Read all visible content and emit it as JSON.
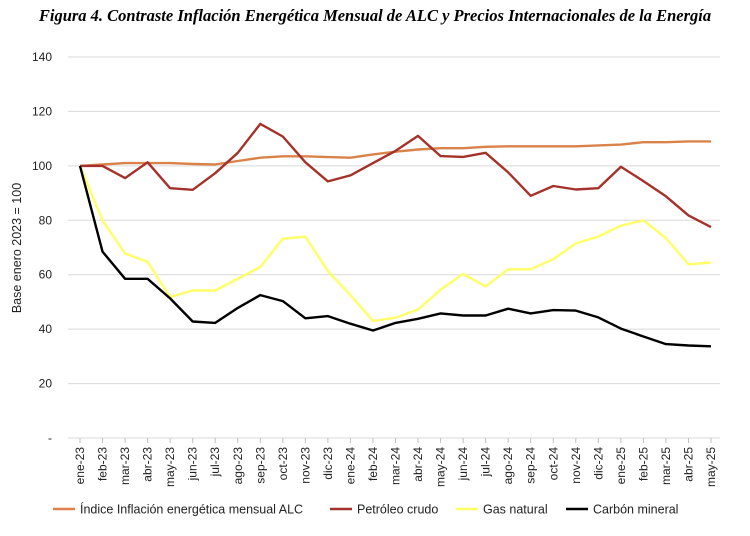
{
  "figure_title": "Figura 4. Contraste Inflación Energética Mensual de ALC y Precios Internacionales de la Energía",
  "chart_data": {
    "type": "line",
    "title": "Figura 4. Contraste Inflación Energética Mensual de ALC y Precios Internacionales de la Energía",
    "xlabel": "",
    "ylabel": "Base enero 2023 = 100",
    "ylim": [
      0,
      140
    ],
    "yticks": [
      "-",
      "20",
      "40",
      "60",
      "80",
      "100",
      "120",
      "140"
    ],
    "grid": true,
    "legend_position": "bottom",
    "categories": [
      "ene-23",
      "feb-23",
      "mar-23",
      "abr-23",
      "may-23",
      "jun-23",
      "jul-23",
      "ago-23",
      "sep-23",
      "oct-23",
      "nov-23",
      "dic-23",
      "ene-24",
      "feb-24",
      "mar-24",
      "abr-24",
      "may-24",
      "jun-24",
      "jul-24",
      "ago-24",
      "sep-24",
      "oct-24",
      "nov-24",
      "dic-24",
      "ene-25",
      "feb-25",
      "mar-25",
      "abr-25",
      "may-25"
    ],
    "series": [
      {
        "name": "Índice Inflación energética mensual ALC",
        "color": "#d9834b",
        "values": [
          100,
          100.5,
          101,
          101,
          101,
          100.7,
          100.5,
          101.8,
          103,
          103.5,
          103.5,
          103.2,
          103,
          104.2,
          105.2,
          106,
          106.5,
          106.5,
          107,
          107.2,
          107.2,
          107.2,
          107.2,
          107.5,
          107.8,
          108.7,
          108.7,
          109,
          109
        ]
      },
      {
        "name": "Petróleo crudo",
        "color": "#a5322a",
        "values": [
          100,
          100,
          95.5,
          101.3,
          91.8,
          91.2,
          97.3,
          104.8,
          115.4,
          110.8,
          101.3,
          94.3,
          96.5,
          101,
          105.5,
          111,
          103.6,
          103.3,
          104.8,
          97.6,
          89,
          92.6,
          91.3,
          91.8,
          99.7,
          94.4,
          88.8,
          81.8,
          77.5
        ]
      },
      {
        "name": "Gas natural",
        "color": "#ffff66",
        "values": [
          100,
          80,
          67.8,
          64.7,
          51.8,
          54.2,
          54.2,
          58.5,
          62.8,
          73.2,
          74,
          61.3,
          52.5,
          43,
          44.2,
          47.2,
          54.5,
          60.3,
          55.7,
          62,
          62,
          65.7,
          71.5,
          74,
          78,
          80,
          73.5,
          63.8,
          64.5
        ]
      },
      {
        "name": "Carbón mineral",
        "color": "#000000",
        "values": [
          100,
          68.5,
          58.5,
          58.5,
          51.3,
          42.8,
          42.3,
          47.8,
          52.5,
          50.3,
          44,
          44.8,
          42,
          39.5,
          42.3,
          43.8,
          45.8,
          45,
          45,
          47.5,
          45.8,
          47,
          46.8,
          44.3,
          40.2,
          37.3,
          34.5,
          34,
          33.7
        ]
      }
    ]
  }
}
